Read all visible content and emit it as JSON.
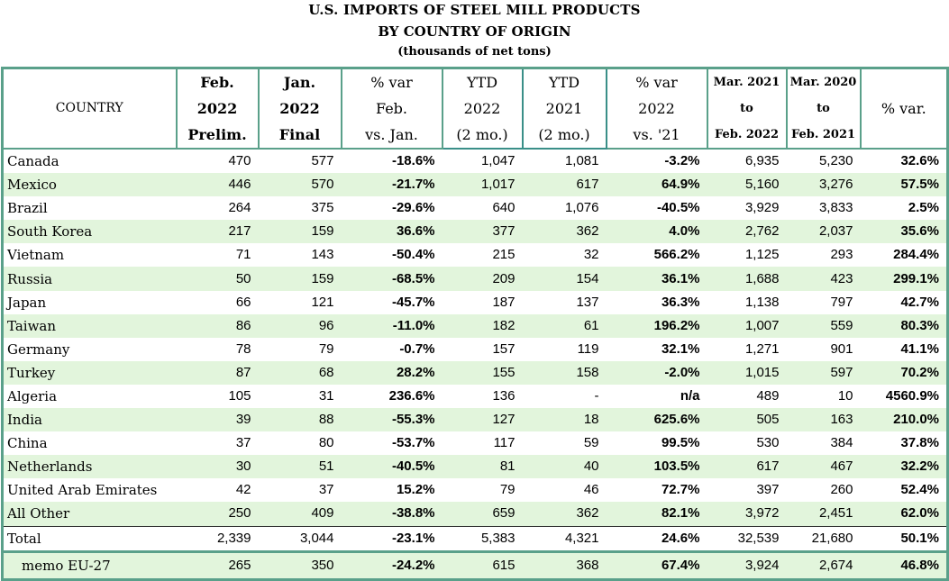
{
  "title": {
    "line1": "U.S. IMPORTS OF STEEL MILL PRODUCTS",
    "line2": "BY COUNTRY OF ORIGIN",
    "line3": "(thousands of net tons)"
  },
  "headers": {
    "country": "COUNTRY",
    "feb22": [
      "Feb.",
      "2022",
      "Prelim."
    ],
    "jan22": [
      "Jan.",
      "2022",
      "Final"
    ],
    "var_feb": [
      "% var",
      "Feb.",
      "vs. Jan."
    ],
    "ytd22": [
      "YTD",
      "2022",
      "(2 mo.)"
    ],
    "ytd21": [
      "YTD",
      "2021",
      "(2 mo.)"
    ],
    "var_ytd": [
      "% var",
      "2022",
      "vs. '21"
    ],
    "r22": [
      "Mar. 2021",
      "to",
      "Feb. 2022"
    ],
    "r21": [
      "Mar. 2020",
      "to",
      "Feb. 2021"
    ],
    "var_r": "% var."
  },
  "rows": [
    [
      "Canada",
      "470",
      "577",
      "-18.6%",
      "1,047",
      "1,081",
      "-3.2%",
      "6,935",
      "5,230",
      "32.6%"
    ],
    [
      "Mexico",
      "446",
      "570",
      "-21.7%",
      "1,017",
      "617",
      "64.9%",
      "5,160",
      "3,276",
      "57.5%"
    ],
    [
      "Brazil",
      "264",
      "375",
      "-29.6%",
      "640",
      "1,076",
      "-40.5%",
      "3,929",
      "3,833",
      "2.5%"
    ],
    [
      "South Korea",
      "217",
      "159",
      "36.6%",
      "377",
      "362",
      "4.0%",
      "2,762",
      "2,037",
      "35.6%"
    ],
    [
      "Vietnam",
      "71",
      "143",
      "-50.4%",
      "215",
      "32",
      "566.2%",
      "1,125",
      "293",
      "284.4%"
    ],
    [
      "Russia",
      "50",
      "159",
      "-68.5%",
      "209",
      "154",
      "36.1%",
      "1,688",
      "423",
      "299.1%"
    ],
    [
      "Japan",
      "66",
      "121",
      "-45.7%",
      "187",
      "137",
      "36.3%",
      "1,138",
      "797",
      "42.7%"
    ],
    [
      "Taiwan",
      "86",
      "96",
      "-11.0%",
      "182",
      "61",
      "196.2%",
      "1,007",
      "559",
      "80.3%"
    ],
    [
      "Germany",
      "78",
      "79",
      "-0.7%",
      "157",
      "119",
      "32.1%",
      "1,271",
      "901",
      "41.1%"
    ],
    [
      "Turkey",
      "87",
      "68",
      "28.2%",
      "155",
      "158",
      "-2.0%",
      "1,015",
      "597",
      "70.2%"
    ],
    [
      "Algeria",
      "105",
      "31",
      "236.6%",
      "136",
      "-",
      "n/a",
      "489",
      "10",
      "4560.9%"
    ],
    [
      "India",
      "39",
      "88",
      "-55.3%",
      "127",
      "18",
      "625.6%",
      "505",
      "163",
      "210.0%"
    ],
    [
      "China",
      "37",
      "80",
      "-53.7%",
      "117",
      "59",
      "99.5%",
      "530",
      "384",
      "37.8%"
    ],
    [
      "Netherlands",
      "30",
      "51",
      "-40.5%",
      "81",
      "40",
      "103.5%",
      "617",
      "467",
      "32.2%"
    ],
    [
      "United Arab Emirates",
      "42",
      "37",
      "15.2%",
      "79",
      "46",
      "72.7%",
      "397",
      "260",
      "52.4%"
    ],
    [
      "All Other",
      "250",
      "409",
      "-38.8%",
      "659",
      "362",
      "82.1%",
      "3,972",
      "2,451",
      "62.0%"
    ]
  ],
  "total": [
    "Total",
    "2,339",
    "3,044",
    "-23.1%",
    "5,383",
    "4,321",
    "24.6%",
    "32,539",
    "21,680",
    "50.1%"
  ],
  "memo": [
    "memo EU-27",
    "265",
    "350",
    "-24.2%",
    "615",
    "368",
    "67.4%",
    "3,924",
    "2,674",
    "46.8%"
  ],
  "colors": {
    "border": "#5aa08a",
    "stripe": "#e2f5dc"
  }
}
